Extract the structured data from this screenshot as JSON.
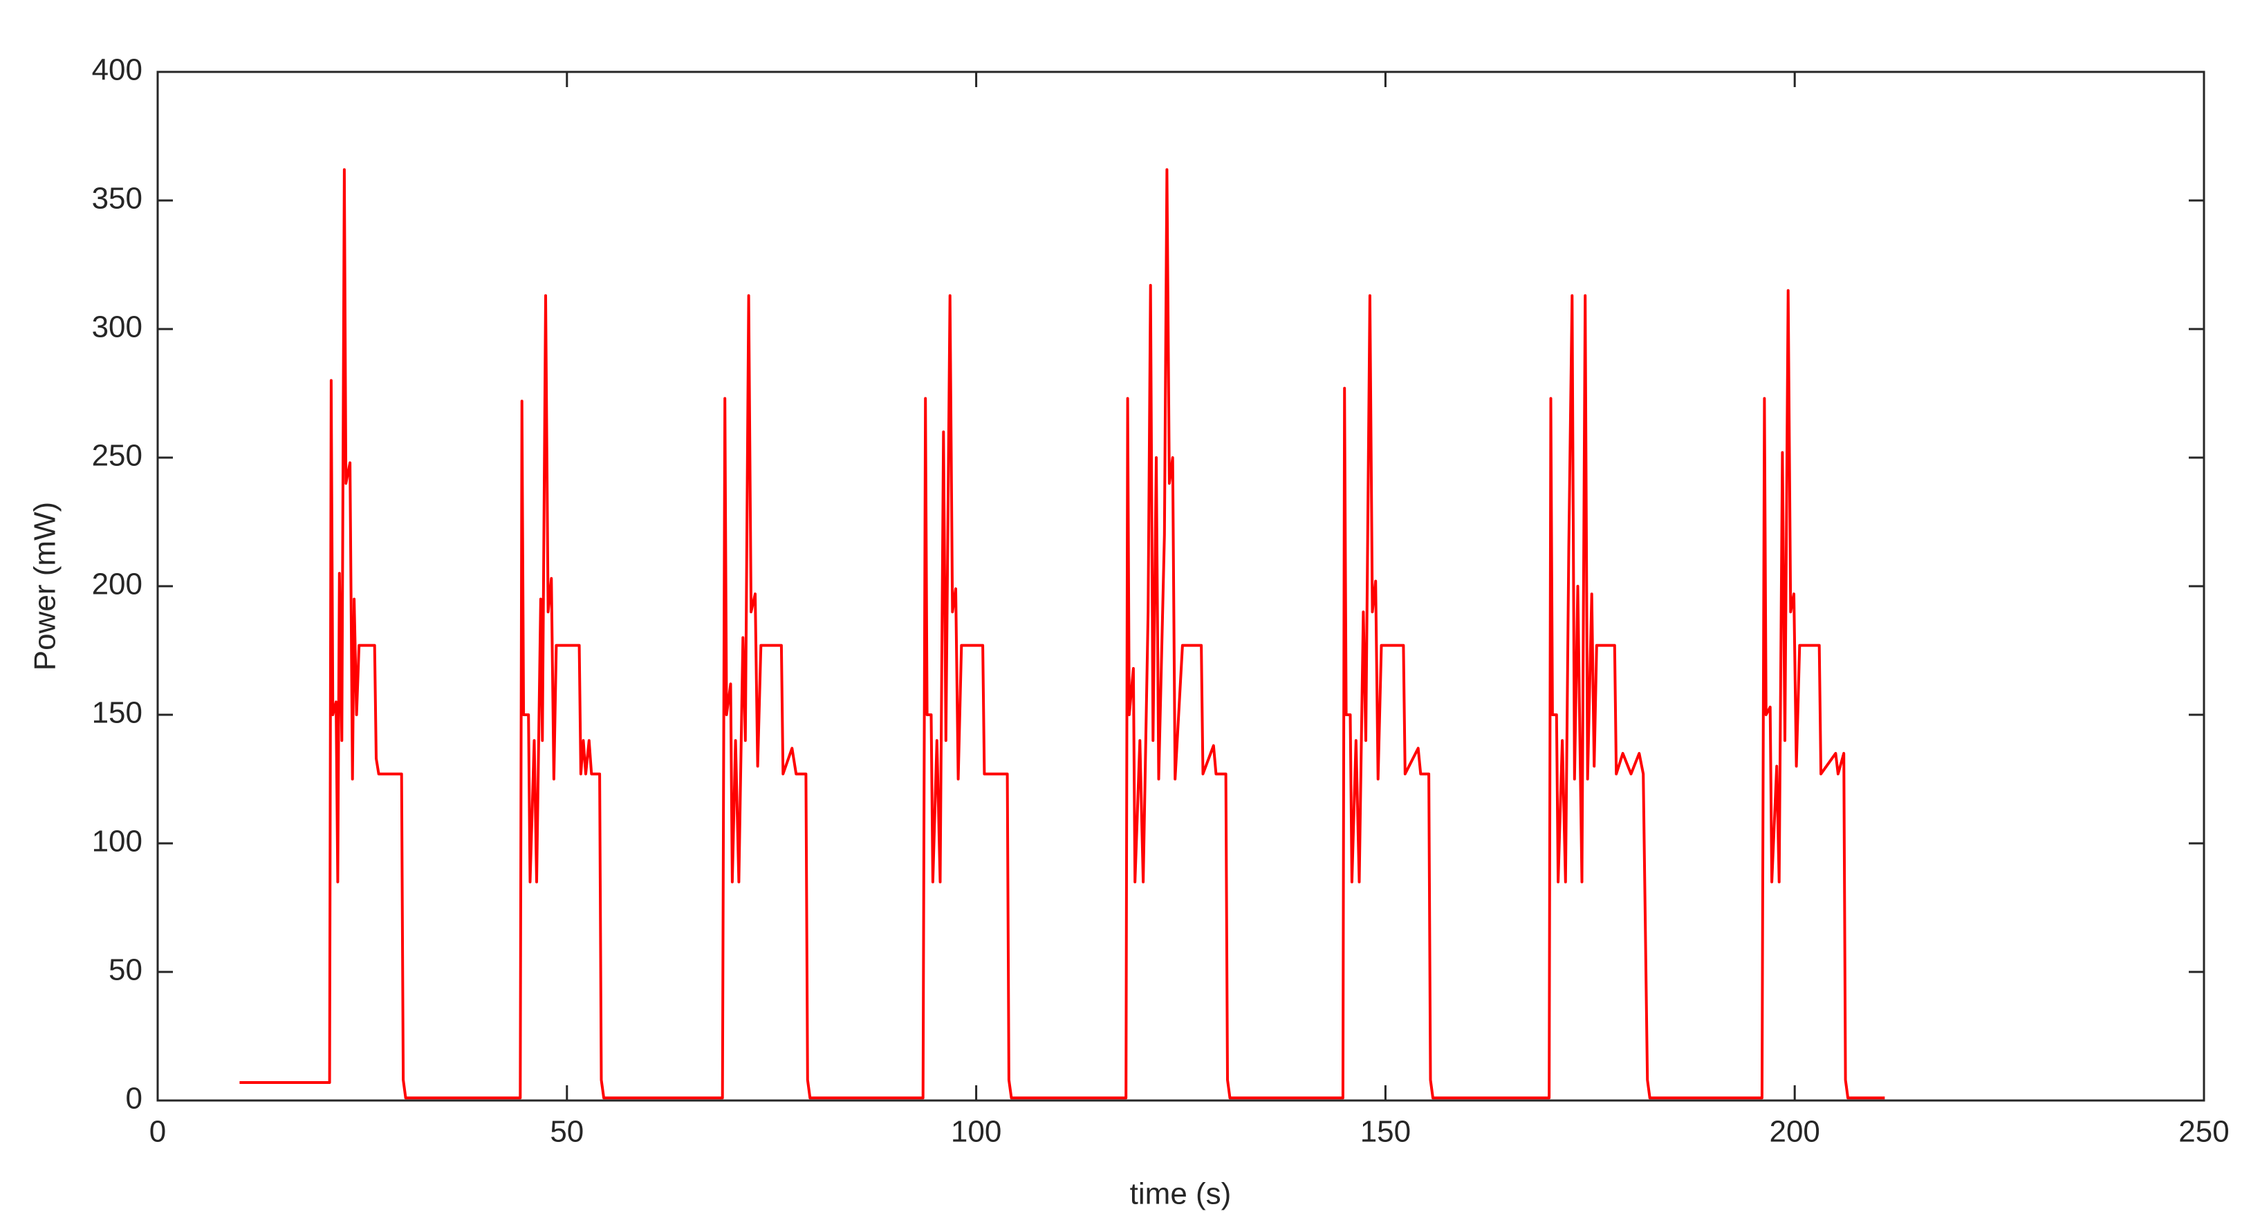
{
  "chart_data": {
    "type": "line",
    "xlabel": "time (s)",
    "ylabel": "Power (mW)",
    "x": [
      10,
      21,
      21.2,
      21.4,
      21.8,
      22.0,
      22.2,
      22.5,
      22.8,
      23.0,
      23.5,
      23.8,
      24.0,
      24.3,
      24.6,
      26.5,
      26.7,
      27.0,
      29.8,
      30.0,
      30.3,
      44.3,
      44.5,
      44.7,
      45.3,
      45.5,
      46.0,
      46.3,
      46.8,
      47.0,
      47.4,
      47.7,
      48.1,
      48.4,
      48.7,
      51.5,
      51.7,
      52.0,
      52.3,
      52.7,
      53.0,
      54.0,
      54.2,
      54.5,
      69.0,
      69.3,
      69.5,
      70.0,
      70.2,
      70.6,
      71.0,
      71.5,
      71.8,
      72.2,
      72.5,
      73.0,
      73.3,
      73.7,
      76.2,
      76.4,
      77.5,
      78.0,
      79.2,
      79.4,
      79.7,
      93.5,
      93.8,
      94.0,
      94.5,
      94.7,
      95.2,
      95.6,
      96.0,
      96.3,
      96.8,
      97.1,
      97.5,
      97.8,
      98.2,
      100.8,
      101.0,
      103.8,
      104.0,
      104.3,
      118.3,
      118.5,
      118.7,
      119.2,
      119.4,
      120.0,
      120.4,
      121.0,
      121.3,
      121.6,
      122.0,
      122.3,
      123.0,
      123.3,
      123.6,
      124.0,
      124.3,
      125.2,
      127.5,
      127.7,
      129.0,
      129.3,
      130.5,
      130.7,
      131.0,
      144.8,
      145.0,
      145.2,
      145.7,
      145.9,
      146.4,
      146.8,
      147.3,
      147.6,
      148.1,
      148.4,
      148.8,
      149.1,
      149.5,
      152.2,
      152.4,
      154.0,
      154.3,
      155.3,
      155.5,
      155.8,
      170.0,
      170.2,
      170.4,
      170.9,
      171.1,
      171.6,
      172.0,
      172.4,
      172.8,
      173.1,
      173.5,
      174.0,
      174.4,
      174.7,
      175.2,
      175.5,
      175.8,
      178.0,
      178.2,
      179.0,
      180.0,
      181.0,
      181.5,
      182.0,
      182.3,
      196.0,
      196.3,
      196.5,
      197.0,
      197.2,
      197.8,
      198.1,
      198.5,
      198.8,
      199.2,
      199.5,
      199.9,
      200.2,
      200.6,
      203.0,
      203.2,
      205.0,
      205.3,
      206.0,
      206.2,
      206.5,
      211.0
    ],
    "series": [
      {
        "name": "Power",
        "color": "#ff0000",
        "values": [
          7,
          7,
          280,
          150,
          155,
          85,
          205,
          140,
          362,
          240,
          248,
          125,
          195,
          150,
          177,
          177,
          133,
          127,
          127,
          8,
          1,
          1,
          272,
          150,
          150,
          85,
          140,
          85,
          195,
          140,
          313,
          190,
          203,
          125,
          177,
          177,
          127,
          140,
          127,
          140,
          127,
          127,
          8,
          1,
          1,
          273,
          150,
          162,
          85,
          140,
          85,
          180,
          140,
          313,
          190,
          197,
          130,
          177,
          177,
          127,
          137,
          127,
          127,
          8,
          1,
          1,
          273,
          150,
          150,
          85,
          140,
          85,
          260,
          140,
          313,
          190,
          199,
          125,
          177,
          177,
          127,
          127,
          8,
          1,
          1,
          273,
          150,
          168,
          85,
          140,
          85,
          190,
          317,
          140,
          250,
          125,
          220,
          362,
          240,
          250,
          125,
          177,
          177,
          127,
          138,
          127,
          127,
          8,
          1,
          1,
          277,
          150,
          150,
          85,
          140,
          85,
          190,
          140,
          313,
          190,
          202,
          125,
          177,
          177,
          127,
          137,
          127,
          127,
          8,
          1,
          1,
          273,
          150,
          150,
          85,
          140,
          85,
          215,
          313,
          125,
          200,
          85,
          313,
          125,
          197,
          130,
          177,
          177,
          127,
          135,
          127,
          135,
          127,
          8,
          1,
          1,
          273,
          150,
          153,
          85,
          130,
          85,
          252,
          140,
          315,
          190,
          197,
          130,
          177,
          177,
          127,
          135,
          127,
          135,
          8,
          1,
          1
        ]
      }
    ],
    "xlim": [
      0,
      250
    ],
    "xticks": [
      0,
      50,
      100,
      150,
      200,
      250
    ],
    "ylim": [
      0,
      400
    ],
    "yticks": [
      0,
      50,
      100,
      150,
      200,
      250,
      300,
      350,
      400
    ],
    "grid": false
  }
}
